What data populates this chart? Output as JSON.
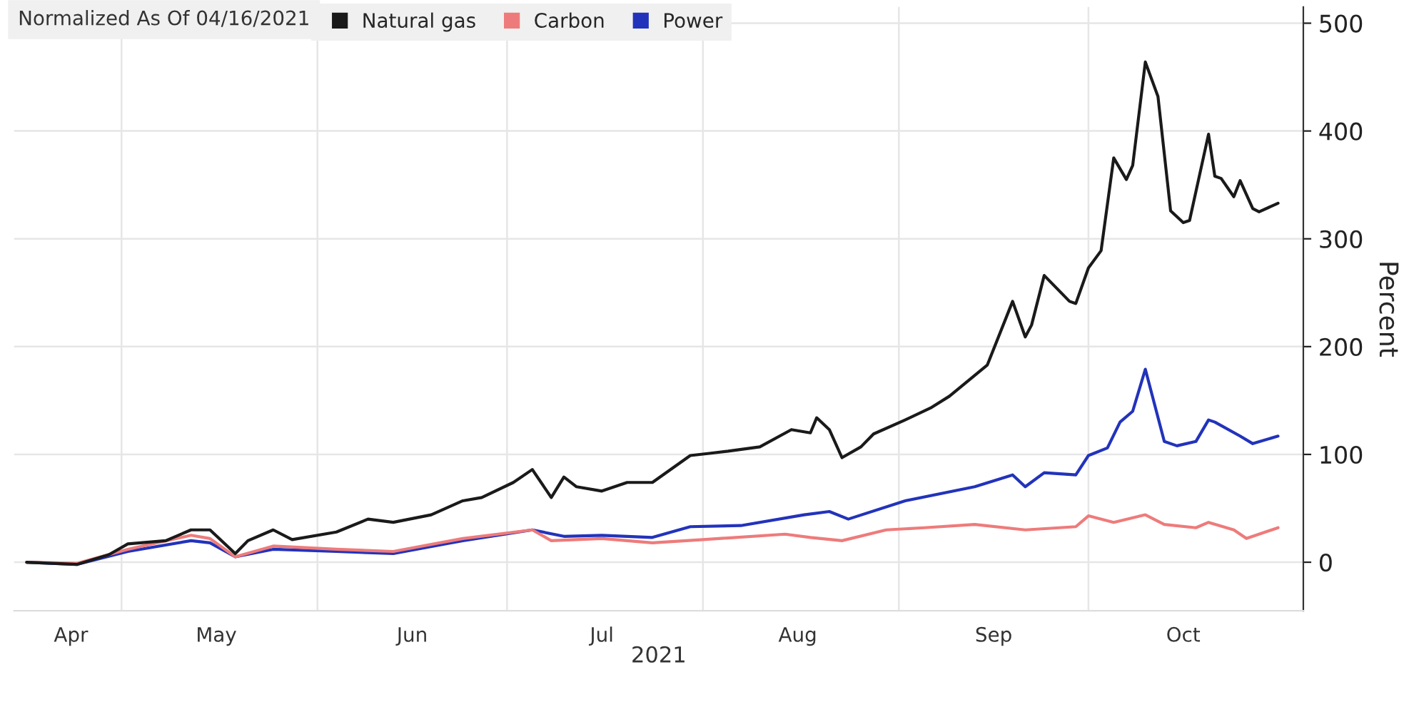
{
  "chart_data": {
    "type": "line",
    "legend_title": "Normalized As Of 04/16/2021",
    "xlabel": "2021",
    "ylabel": "Percent",
    "xlim": [
      "2021-04-14",
      "2021-11-04"
    ],
    "xticks": [
      {
        "value": "2021-05-01",
        "label": null
      },
      {
        "value": "2021-06-01",
        "label": null
      },
      {
        "value": "2021-07-01",
        "label": null
      },
      {
        "value": "2021-08-01",
        "label": null
      },
      {
        "value": "2021-09-01",
        "label": null
      },
      {
        "value": "2021-10-01",
        "label": null
      },
      {
        "value": "2021-04-23",
        "label": "Apr"
      },
      {
        "value": "2021-05-16",
        "label": "May"
      },
      {
        "value": "2021-06-16",
        "label": "Jun"
      },
      {
        "value": "2021-07-16",
        "label": "Jul"
      },
      {
        "value": "2021-08-16",
        "label": "Aug"
      },
      {
        "value": "2021-09-16",
        "label": "Sep"
      },
      {
        "value": "2021-10-16",
        "label": "Oct"
      }
    ],
    "ylim": [
      -45,
      515
    ],
    "yticks": [
      0,
      100,
      200,
      300,
      400,
      500
    ],
    "grid": true,
    "legend": "top left",
    "series": [
      {
        "name": "Natural gas",
        "color": "#1a1a1a",
        "x": [
          "2021-04-16",
          "2021-04-24",
          "2021-04-29",
          "2021-05-02",
          "2021-05-08",
          "2021-05-12",
          "2021-05-15",
          "2021-05-19",
          "2021-05-21",
          "2021-05-25",
          "2021-05-28",
          "2021-06-04",
          "2021-06-09",
          "2021-06-13",
          "2021-06-19",
          "2021-06-24",
          "2021-06-27",
          "2021-07-02",
          "2021-07-05",
          "2021-07-08",
          "2021-07-10",
          "2021-07-12",
          "2021-07-16",
          "2021-07-20",
          "2021-07-24",
          "2021-07-30",
          "2021-08-02",
          "2021-08-05",
          "2021-08-10",
          "2021-08-15",
          "2021-08-18",
          "2021-08-19",
          "2021-08-21",
          "2021-08-23",
          "2021-08-26",
          "2021-08-28",
          "2021-09-02",
          "2021-09-06",
          "2021-09-09",
          "2021-09-15",
          "2021-09-19",
          "2021-09-21",
          "2021-09-22",
          "2021-09-24",
          "2021-09-28",
          "2021-09-29",
          "2021-10-01",
          "2021-10-03",
          "2021-10-05",
          "2021-10-07",
          "2021-10-08",
          "2021-10-10",
          "2021-10-12",
          "2021-10-14",
          "2021-10-16",
          "2021-10-17",
          "2021-10-20",
          "2021-10-21",
          "2021-10-22",
          "2021-10-24",
          "2021-10-25",
          "2021-10-27",
          "2021-10-28",
          "2021-10-31"
        ],
        "values": [
          0,
          -2,
          7,
          17,
          20,
          30,
          30,
          8,
          20,
          30,
          21,
          28,
          40,
          37,
          44,
          57,
          60,
          74,
          86,
          60,
          79,
          70,
          66,
          74,
          74,
          99,
          101,
          103,
          107,
          123,
          120,
          134,
          123,
          97,
          107,
          119,
          132,
          143,
          154,
          183,
          242,
          209,
          220,
          266,
          242,
          240,
          273,
          289,
          375,
          355,
          368,
          464,
          432,
          326,
          315,
          317,
          397,
          358,
          356,
          339,
          354,
          328,
          325,
          333
        ]
      },
      {
        "name": "Carbon",
        "color": "#ee7b7b",
        "x": [
          "2021-04-16",
          "2021-04-24",
          "2021-05-02",
          "2021-05-12",
          "2021-05-15",
          "2021-05-19",
          "2021-05-25",
          "2021-06-04",
          "2021-06-13",
          "2021-06-24",
          "2021-07-05",
          "2021-07-08",
          "2021-07-16",
          "2021-07-24",
          "2021-08-01",
          "2021-08-14",
          "2021-08-18",
          "2021-08-23",
          "2021-08-30",
          "2021-09-05",
          "2021-09-13",
          "2021-09-21",
          "2021-09-29",
          "2021-10-01",
          "2021-10-05",
          "2021-10-10",
          "2021-10-13",
          "2021-10-18",
          "2021-10-20",
          "2021-10-24",
          "2021-10-26",
          "2021-10-31"
        ],
        "values": [
          0,
          -1,
          12,
          25,
          22,
          5,
          15,
          12,
          10,
          22,
          30,
          20,
          22,
          18,
          21,
          26,
          23,
          20,
          30,
          32,
          35,
          30,
          33,
          43,
          37,
          44,
          35,
          32,
          37,
          30,
          22,
          32
        ]
      },
      {
        "name": "Power",
        "color": "#2233bb",
        "x": [
          "2021-04-16",
          "2021-04-24",
          "2021-05-02",
          "2021-05-12",
          "2021-05-15",
          "2021-05-19",
          "2021-05-25",
          "2021-06-04",
          "2021-06-13",
          "2021-06-24",
          "2021-07-05",
          "2021-07-10",
          "2021-07-16",
          "2021-07-24",
          "2021-07-30",
          "2021-08-07",
          "2021-08-17",
          "2021-08-21",
          "2021-08-24",
          "2021-09-02",
          "2021-09-13",
          "2021-09-19",
          "2021-09-21",
          "2021-09-24",
          "2021-09-29",
          "2021-10-01",
          "2021-10-04",
          "2021-10-06",
          "2021-10-08",
          "2021-10-10",
          "2021-10-13",
          "2021-10-15",
          "2021-10-18",
          "2021-10-20",
          "2021-10-21",
          "2021-10-25",
          "2021-10-27",
          "2021-10-31"
        ],
        "values": [
          0,
          -2,
          10,
          20,
          18,
          5,
          12,
          10,
          8,
          20,
          30,
          24,
          25,
          23,
          33,
          34,
          44,
          47,
          40,
          57,
          70,
          81,
          70,
          83,
          81,
          99,
          106,
          130,
          140,
          179,
          112,
          108,
          112,
          132,
          130,
          117,
          110,
          117
        ]
      }
    ]
  }
}
